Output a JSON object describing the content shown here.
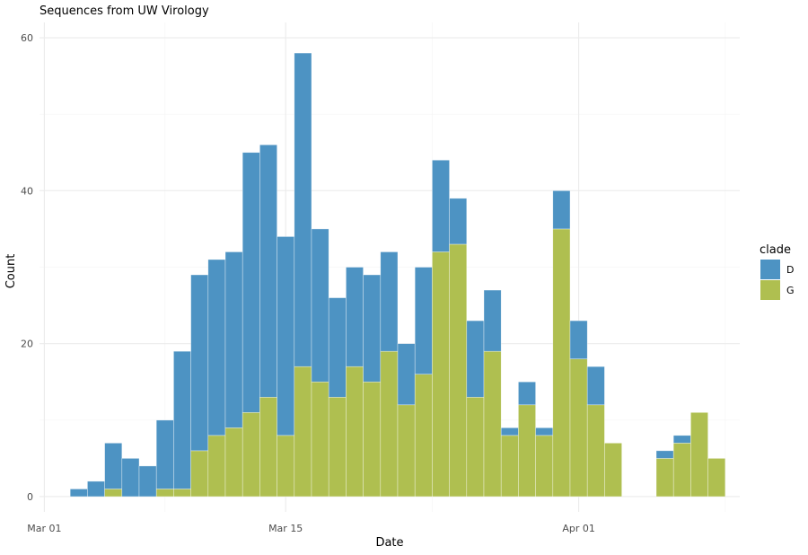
{
  "chart_data": {
    "type": "bar",
    "stacked": true,
    "title": "Sequences from UW Virology",
    "xlabel": "Date",
    "ylabel": "Count",
    "x_start_date": "2020-02-28",
    "x_axis_ticks": [
      {
        "date": "2020-03-01",
        "label": "Mar 01"
      },
      {
        "date": "2020-03-15",
        "label": "Mar 15"
      },
      {
        "date": "2020-04-01",
        "label": "Apr 01"
      }
    ],
    "y_ticks": [
      0,
      20,
      40,
      60
    ],
    "ylim": [
      -2,
      62
    ],
    "grid": true,
    "legend": {
      "title": "clade",
      "position": "right"
    },
    "colors": {
      "D": "#4d93c3",
      "G": "#afbf50"
    },
    "dates": [
      "2020-03-03",
      "2020-03-04",
      "2020-03-05",
      "2020-03-06",
      "2020-03-07",
      "2020-03-08",
      "2020-03-09",
      "2020-03-10",
      "2020-03-11",
      "2020-03-12",
      "2020-03-13",
      "2020-03-14",
      "2020-03-15",
      "2020-03-16",
      "2020-03-17",
      "2020-03-18",
      "2020-03-19",
      "2020-03-20",
      "2020-03-21",
      "2020-03-22",
      "2020-03-23",
      "2020-03-24",
      "2020-03-25",
      "2020-03-26",
      "2020-03-27",
      "2020-03-28",
      "2020-03-29",
      "2020-03-30",
      "2020-03-31",
      "2020-04-01",
      "2020-04-02",
      "2020-04-03",
      "2020-04-04",
      "2020-04-05",
      "2020-04-06",
      "2020-04-07",
      "2020-04-08",
      "2020-04-09"
    ],
    "series": [
      {
        "name": "G",
        "values": [
          0,
          0,
          1,
          0,
          0,
          1,
          1,
          6,
          8,
          9,
          11,
          13,
          8,
          17,
          15,
          13,
          17,
          15,
          19,
          12,
          16,
          32,
          33,
          13,
          19,
          8,
          12,
          8,
          35,
          18,
          12,
          7,
          0,
          0,
          5,
          7,
          11,
          5
        ]
      },
      {
        "name": "D",
        "values": [
          1,
          2,
          6,
          5,
          4,
          9,
          18,
          23,
          23,
          23,
          34,
          33,
          26,
          41,
          20,
          13,
          13,
          14,
          13,
          8,
          14,
          12,
          6,
          10,
          8,
          1,
          3,
          1,
          5,
          5,
          5,
          0,
          0,
          0,
          1,
          1,
          0,
          0
        ]
      }
    ]
  }
}
